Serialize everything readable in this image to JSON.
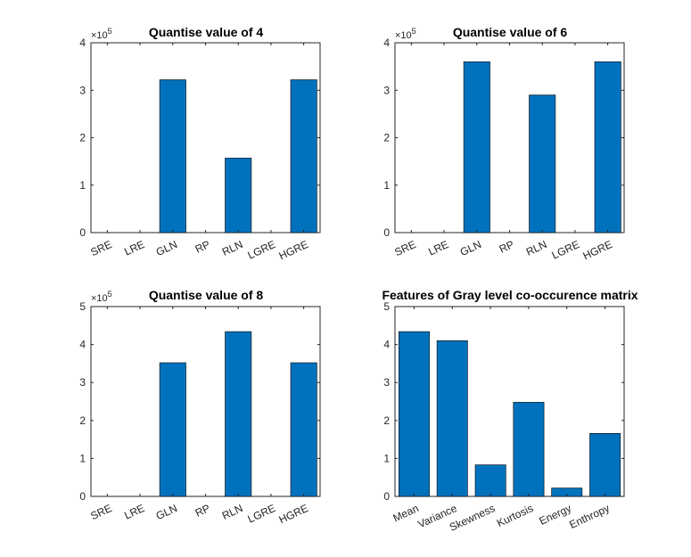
{
  "colors": {
    "bar": "#0072BD",
    "bar_edge": "#000000",
    "axis": "#262626",
    "background": "#ffffff"
  },
  "chart_data": [
    {
      "type": "bar",
      "title": "Quantise value of 4",
      "categories": [
        "SRE",
        "LRE",
        "GLN",
        "RP",
        "RLN",
        "LGRE",
        "HGRE"
      ],
      "values": [
        0,
        0,
        322000,
        0,
        157000,
        0,
        322000
      ],
      "ylim": [
        0,
        400000
      ],
      "yticks": [
        0,
        100000,
        200000,
        300000,
        400000
      ],
      "ytick_labels": [
        "0",
        "1",
        "2",
        "3",
        "4"
      ],
      "exponent_label": "×10",
      "exponent_power": "5",
      "grid": false
    },
    {
      "type": "bar",
      "title": "Quantise value of 6",
      "categories": [
        "SRE",
        "LRE",
        "GLN",
        "RP",
        "RLN",
        "LGRE",
        "HGRE"
      ],
      "values": [
        0,
        0,
        360000,
        0,
        290000,
        0,
        360000
      ],
      "ylim": [
        0,
        400000
      ],
      "yticks": [
        0,
        100000,
        200000,
        300000,
        400000
      ],
      "ytick_labels": [
        "0",
        "1",
        "2",
        "3",
        "4"
      ],
      "exponent_label": "×10",
      "exponent_power": "5",
      "grid": false
    },
    {
      "type": "bar",
      "title": "Quantise value of 8",
      "categories": [
        "SRE",
        "LRE",
        "GLN",
        "RP",
        "RLN",
        "LGRE",
        "HGRE"
      ],
      "values": [
        0,
        0,
        352000,
        0,
        434000,
        0,
        352000
      ],
      "ylim": [
        0,
        500000
      ],
      "yticks": [
        0,
        100000,
        200000,
        300000,
        400000,
        500000
      ],
      "ytick_labels": [
        "0",
        "1",
        "2",
        "3",
        "4",
        "5"
      ],
      "exponent_label": "×10",
      "exponent_power": "5",
      "grid": false
    },
    {
      "type": "bar",
      "title": "Features of Gray level co-occurence matrix",
      "categories": [
        "Mean",
        "Variance",
        "Skewness",
        "Kurtosis",
        "Energy",
        "Enthropy"
      ],
      "values": [
        4.34,
        4.1,
        0.83,
        2.48,
        0.22,
        1.66
      ],
      "ylim": [
        0,
        5
      ],
      "yticks": [
        0,
        1,
        2,
        3,
        4,
        5
      ],
      "ytick_labels": [
        "0",
        "1",
        "2",
        "3",
        "4",
        "5"
      ],
      "exponent_label": "",
      "exponent_power": "",
      "grid": false
    }
  ]
}
